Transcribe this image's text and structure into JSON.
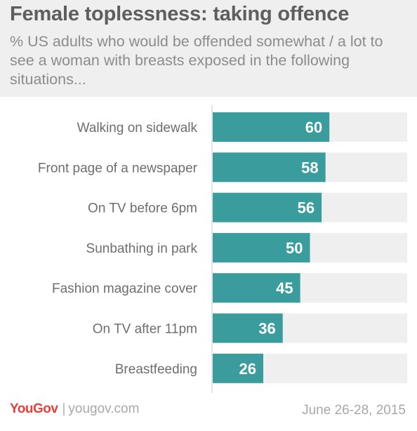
{
  "title": "Female toplessness: taking offence",
  "subtitle": "% US adults who would be offended somewhat / a lot to see a woman with breasts exposed in the following situations...",
  "chart_data": {
    "type": "bar",
    "orientation": "horizontal",
    "categories": [
      "Walking on sidewalk",
      "Front page of a newspaper",
      "On TV before 6pm",
      "Sunbathing in park",
      "Fashion magazine cover",
      "On TV after 11pm",
      "Breastfeeding"
    ],
    "values": [
      60,
      58,
      56,
      50,
      45,
      36,
      26
    ],
    "xlim": [
      0,
      100
    ],
    "bar_color": "#3a9c9c",
    "track_color": "#efefef",
    "value_label_color": "#ffffff",
    "grid": false
  },
  "footer": {
    "logo": "YouGov",
    "separator": "|",
    "site": "yougov.com",
    "date": "June 26-28, 2015"
  },
  "colors": {
    "brand": "#e6403a",
    "title": "#5e5e5e",
    "subtitle": "#8c8c8c",
    "label": "#6e6e6e"
  }
}
